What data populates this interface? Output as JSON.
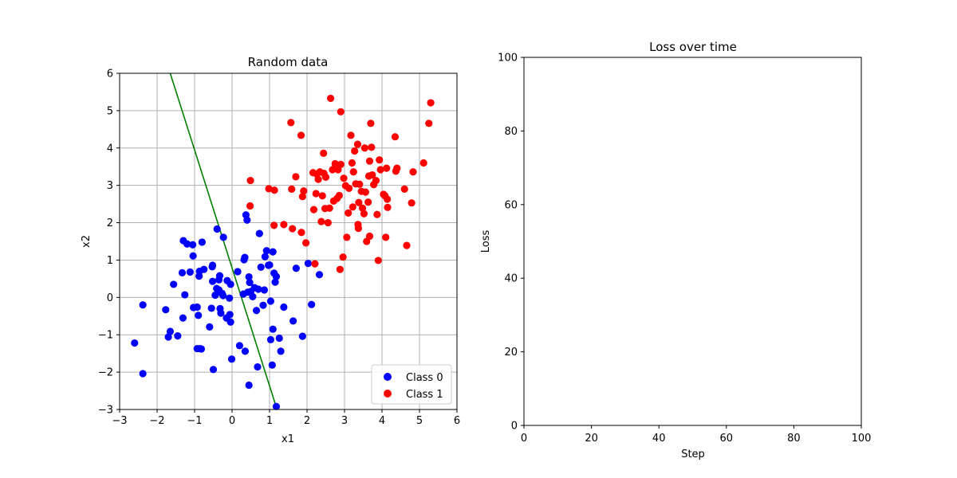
{
  "colors": {
    "class0": "#0000ff",
    "class1": "#ff0000",
    "boundary": "#008000",
    "grid": "#b0b0b0",
    "axis": "#000000"
  },
  "chart_data": [
    {
      "type": "scatter",
      "title": "Random data",
      "xlabel": "x1",
      "ylabel": "x2",
      "xlim": [
        -3,
        6
      ],
      "ylim": [
        -3,
        6
      ],
      "xticks": [
        "−3",
        "−2",
        "−1",
        "0",
        "1",
        "2",
        "3",
        "4",
        "5",
        "6"
      ],
      "yticks": [
        "−3",
        "−2",
        "−1",
        "0",
        "1",
        "2",
        "3",
        "4",
        "5",
        "6"
      ],
      "grid": true,
      "legend": {
        "placement": "lower right",
        "entries": [
          "Class 0",
          "Class 1"
        ]
      },
      "decision_boundary": {
        "points": [
          [
            -1.65,
            6.0
          ],
          [
            1.2,
            -3.0
          ]
        ]
      },
      "series": [
        {
          "name": "Class 0",
          "color": "#0000ff",
          "points": [
            [
              -2.6,
              -1.22
            ],
            [
              -2.38,
              -0.2
            ],
            [
              -2.38,
              -2.04
            ],
            [
              -1.77,
              -0.33
            ],
            [
              -1.65,
              -0.91
            ],
            [
              -1.7,
              -1.06
            ],
            [
              -1.45,
              -1.03
            ],
            [
              -1.56,
              0.35
            ],
            [
              -1.3,
              1.52
            ],
            [
              -1.33,
              0.66
            ],
            [
              -1.26,
              0.07
            ],
            [
              -1.31,
              -0.55
            ],
            [
              -1.2,
              1.43
            ],
            [
              -1.12,
              0.68
            ],
            [
              -1.05,
              1.41
            ],
            [
              -1.04,
              1.11
            ],
            [
              -1.03,
              -0.27
            ],
            [
              -0.93,
              -0.26
            ],
            [
              -0.93,
              -1.37
            ],
            [
              -0.9,
              -0.48
            ],
            [
              -0.85,
              -1.37
            ],
            [
              -0.82,
              -1.38
            ],
            [
              -0.87,
              0.7
            ],
            [
              -0.88,
              0.57
            ],
            [
              -0.8,
              1.48
            ],
            [
              -0.75,
              0.75
            ],
            [
              -0.6,
              -0.79
            ],
            [
              -0.55,
              -0.29
            ],
            [
              -0.53,
              0.82
            ],
            [
              -0.52,
              0.86
            ],
            [
              -0.52,
              0.43
            ],
            [
              -0.5,
              -1.93
            ],
            [
              -0.45,
              0.06
            ],
            [
              -0.41,
              0.24
            ],
            [
              -0.4,
              1.83
            ],
            [
              -0.35,
              0.47
            ],
            [
              -0.35,
              0.2
            ],
            [
              -0.33,
              0.58
            ],
            [
              -0.32,
              -0.3
            ],
            [
              -0.3,
              -0.42
            ],
            [
              -0.27,
              0.11
            ],
            [
              -0.24,
              0.05
            ],
            [
              -0.23,
              1.61
            ],
            [
              -0.15,
              -0.55
            ],
            [
              -0.13,
              0.45
            ],
            [
              -0.07,
              -0.02
            ],
            [
              -0.06,
              -0.46
            ],
            [
              -0.04,
              -0.66
            ],
            [
              -0.04,
              0.35
            ],
            [
              -0.01,
              -1.65
            ],
            [
              0.15,
              0.69
            ],
            [
              0.2,
              -1.29
            ],
            [
              0.3,
              0.09
            ],
            [
              0.32,
              1.01
            ],
            [
              0.34,
              1.07
            ],
            [
              0.35,
              -1.44
            ],
            [
              0.37,
              2.21
            ],
            [
              0.4,
              2.07
            ],
            [
              0.42,
              0.14
            ],
            [
              0.45,
              0.55
            ],
            [
              0.47,
              0.4
            ],
            [
              0.5,
              0.16
            ],
            [
              0.55,
              0.02
            ],
            [
              0.6,
              0.26
            ],
            [
              0.65,
              -0.35
            ],
            [
              0.68,
              -1.86
            ],
            [
              0.7,
              0.22
            ],
            [
              0.73,
              1.71
            ],
            [
              0.77,
              0.81
            ],
            [
              0.83,
              -0.21
            ],
            [
              0.86,
              0.2
            ],
            [
              0.88,
              1.09
            ],
            [
              0.92,
              1.25
            ],
            [
              0.97,
              0.86
            ],
            [
              1.0,
              0.87
            ],
            [
              1.03,
              -0.1
            ],
            [
              1.03,
              -1.13
            ],
            [
              1.07,
              -1.81
            ],
            [
              1.09,
              1.22
            ],
            [
              1.09,
              -0.85
            ],
            [
              1.12,
              0.65
            ],
            [
              1.15,
              0.41
            ],
            [
              1.18,
              0.56
            ],
            [
              1.18,
              -2.92
            ],
            [
              1.26,
              -1.09
            ],
            [
              1.3,
              -1.44
            ],
            [
              1.38,
              -0.26
            ],
            [
              1.63,
              -0.63
            ],
            [
              1.71,
              0.78
            ],
            [
              1.88,
              -1.04
            ],
            [
              2.03,
              0.91
            ],
            [
              2.12,
              -0.19
            ],
            [
              2.33,
              0.61
            ],
            [
              0.45,
              -2.35
            ]
          ]
        },
        {
          "name": "Class 1",
          "color": "#ff0000",
          "points": [
            [
              0.48,
              2.45
            ],
            [
              0.49,
              3.13
            ],
            [
              0.98,
              2.91
            ],
            [
              1.12,
              1.93
            ],
            [
              1.13,
              2.87
            ],
            [
              1.38,
              1.95
            ],
            [
              1.57,
              4.68
            ],
            [
              1.59,
              2.9
            ],
            [
              1.61,
              1.84
            ],
            [
              1.7,
              3.23
            ],
            [
              1.84,
              4.34
            ],
            [
              1.85,
              1.74
            ],
            [
              1.88,
              2.7
            ],
            [
              1.91,
              2.85
            ],
            [
              1.97,
              1.46
            ],
            [
              2.16,
              3.34
            ],
            [
              2.18,
              2.35
            ],
            [
              2.21,
              0.9
            ],
            [
              2.24,
              2.78
            ],
            [
              2.26,
              3.3
            ],
            [
              2.3,
              3.16
            ],
            [
              2.34,
              3.36
            ],
            [
              2.38,
              2.03
            ],
            [
              2.41,
              2.72
            ],
            [
              2.44,
              3.86
            ],
            [
              2.45,
              3.32
            ],
            [
              2.48,
              2.38
            ],
            [
              2.5,
              3.22
            ],
            [
              2.56,
              2.0
            ],
            [
              2.6,
              2.39
            ],
            [
              2.63,
              5.33
            ],
            [
              2.68,
              3.42
            ],
            [
              2.71,
              2.58
            ],
            [
              2.75,
              3.58
            ],
            [
              2.8,
              2.65
            ],
            [
              2.83,
              3.42
            ],
            [
              2.86,
              2.73
            ],
            [
              2.88,
              0.75
            ],
            [
              2.9,
              4.97
            ],
            [
              2.9,
              3.56
            ],
            [
              2.96,
              1.08
            ],
            [
              2.98,
              3.19
            ],
            [
              3.03,
              2.99
            ],
            [
              3.06,
              1.61
            ],
            [
              3.1,
              2.26
            ],
            [
              3.12,
              2.92
            ],
            [
              3.17,
              4.34
            ],
            [
              3.2,
              3.6
            ],
            [
              3.22,
              2.42
            ],
            [
              3.24,
              3.36
            ],
            [
              3.27,
              3.92
            ],
            [
              3.3,
              3.04
            ],
            [
              3.35,
              4.1
            ],
            [
              3.36,
              1.95
            ],
            [
              3.37,
              1.85
            ],
            [
              3.38,
              2.54
            ],
            [
              3.4,
              3.03
            ],
            [
              3.45,
              2.84
            ],
            [
              3.48,
              2.39
            ],
            [
              3.52,
              2.24
            ],
            [
              3.54,
              4.0
            ],
            [
              3.56,
              2.82
            ],
            [
              3.59,
              1.5
            ],
            [
              3.63,
              2.55
            ],
            [
              3.65,
              3.25
            ],
            [
              3.67,
              3.65
            ],
            [
              3.7,
              4.66
            ],
            [
              3.72,
              4.02
            ],
            [
              3.74,
              3.28
            ],
            [
              3.78,
              3.02
            ],
            [
              3.84,
              3.13
            ],
            [
              3.87,
              2.22
            ],
            [
              3.9,
              0.99
            ],
            [
              3.93,
              3.68
            ],
            [
              3.96,
              3.42
            ],
            [
              4.04,
              2.76
            ],
            [
              4.08,
              2.72
            ],
            [
              4.12,
              3.46
            ],
            [
              4.14,
              2.63
            ],
            [
              4.15,
              2.41
            ],
            [
              4.1,
              1.61
            ],
            [
              4.35,
              4.3
            ],
            [
              4.37,
              3.38
            ],
            [
              4.4,
              3.46
            ],
            [
              4.6,
              2.9
            ],
            [
              4.66,
              1.39
            ],
            [
              4.79,
              2.53
            ],
            [
              4.83,
              3.36
            ],
            [
              5.11,
              3.6
            ],
            [
              5.25,
              4.66
            ],
            [
              5.3,
              5.21
            ],
            [
              3.67,
              1.64
            ]
          ]
        }
      ]
    },
    {
      "type": "line",
      "title": "Loss over time",
      "xlabel": "Step",
      "ylabel": "Loss",
      "xlim": [
        0,
        100
      ],
      "ylim": [
        0,
        100
      ],
      "xticks": [
        "0",
        "20",
        "40",
        "60",
        "80",
        "100"
      ],
      "yticks": [
        "0",
        "20",
        "40",
        "60",
        "80",
        "100"
      ],
      "grid": false,
      "series": []
    }
  ]
}
